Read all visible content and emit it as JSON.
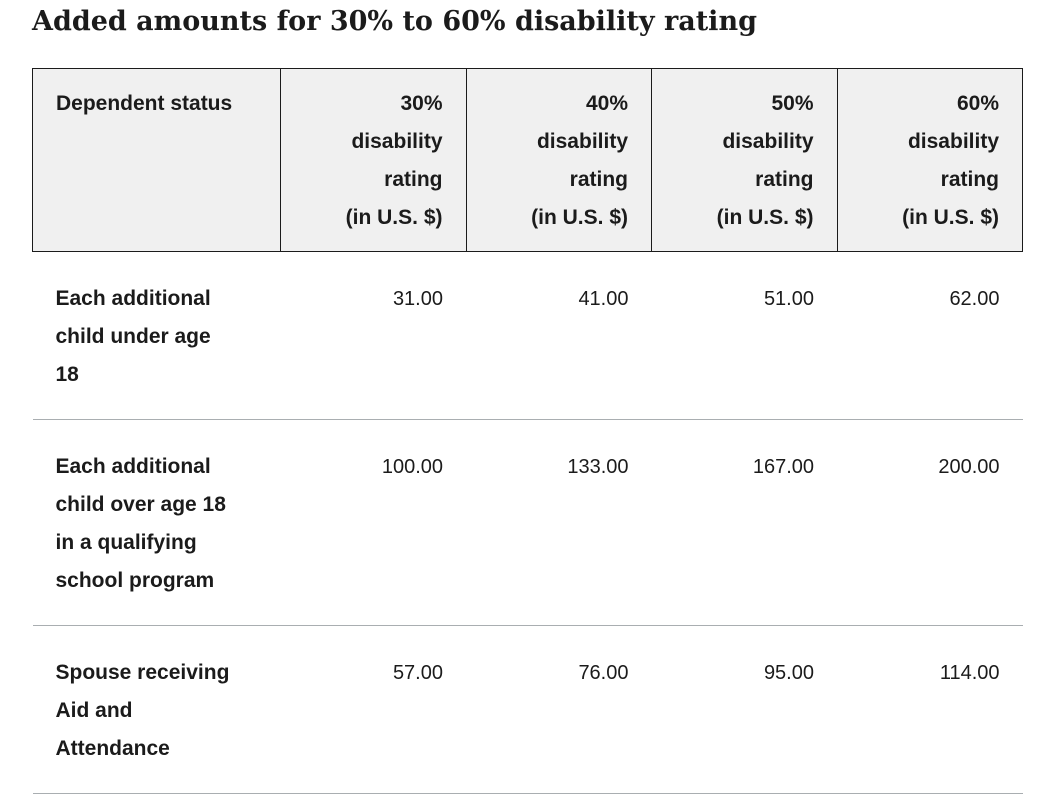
{
  "title": "Added amounts for 30% to 60% disability rating",
  "table": {
    "header": {
      "col0": "Dependent status",
      "col1": [
        "30%",
        "disability",
        "rating",
        "(in U.S. $)"
      ],
      "col2": [
        "40%",
        "disability",
        "rating",
        "(in U.S. $)"
      ],
      "col3": [
        "50%",
        "disability",
        "rating",
        "(in U.S. $)"
      ],
      "col4": [
        "60%",
        "disability",
        "rating",
        "(in U.S. $)"
      ]
    },
    "rows": [
      {
        "label": [
          "Each additional",
          "child under age",
          "18"
        ],
        "values": [
          "31.00",
          "41.00",
          "51.00",
          "62.00"
        ]
      },
      {
        "label": [
          "Each additional",
          "child over age 18",
          "in a qualifying",
          "school program"
        ],
        "values": [
          "100.00",
          "133.00",
          "167.00",
          "200.00"
        ]
      },
      {
        "label": [
          "Spouse receiving",
          "Aid and",
          "Attendance"
        ],
        "values": [
          "57.00",
          "76.00",
          "95.00",
          "114.00"
        ]
      }
    ]
  }
}
